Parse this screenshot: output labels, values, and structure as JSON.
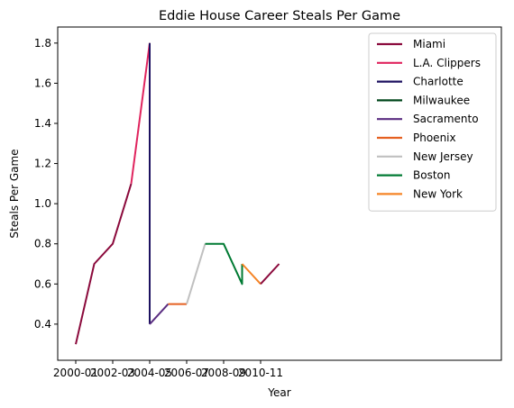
{
  "chart_data": {
    "type": "line",
    "title": "Eddie House Career Steals Per Game",
    "xlabel": "Year",
    "ylabel": "Steals Per Game",
    "x_ticks": [
      "2000-01",
      "2002-03",
      "2004-05",
      "2006-07",
      "2008-09",
      "2010-11"
    ],
    "y_ticks": [
      "0.4",
      "0.6",
      "0.8",
      "1.0",
      "1.2",
      "1.4",
      "1.6",
      "1.8"
    ],
    "ylim": [
      0.22,
      1.88
    ],
    "grid": false,
    "legend_position": "top-right",
    "series": [
      {
        "name": "Miami",
        "color": "#8b0a3c",
        "points": [
          [
            "2000-01",
            0.3
          ],
          [
            "2001-02",
            0.7
          ],
          [
            "2002-03",
            0.8
          ],
          [
            "2003-04",
            1.1
          ]
        ]
      },
      {
        "name": "L.A. Clippers",
        "color": "#e0245e",
        "points": [
          [
            "2003-04",
            1.1
          ],
          [
            "2004-05",
            1.8
          ]
        ]
      },
      {
        "name": "Charlotte",
        "color": "#1d1160",
        "points": [
          [
            "2004-05",
            1.8
          ],
          [
            "2004-05",
            0.4
          ]
        ]
      },
      {
        "name": "Milwaukee",
        "color": "#00471b",
        "points": [
          [
            "2004-05",
            0.4
          ]
        ]
      },
      {
        "name": "Sacramento",
        "color": "#5a2d81",
        "points": [
          [
            "2004-05",
            0.4
          ],
          [
            "2005-06",
            0.5
          ]
        ]
      },
      {
        "name": "Phoenix",
        "color": "#e56020",
        "points": [
          [
            "2005-06",
            0.5
          ],
          [
            "2006-07",
            0.5
          ]
        ]
      },
      {
        "name": "New Jersey",
        "color": "#c0c0c0",
        "points": [
          [
            "2006-07",
            0.5
          ],
          [
            "2007-08",
            0.8
          ]
        ]
      },
      {
        "name": "Boston",
        "color": "#007a33",
        "points": [
          [
            "2007-08",
            0.8
          ],
          [
            "2008-09",
            0.8
          ],
          [
            "2009-10",
            0.6
          ],
          [
            "2009-10",
            0.7
          ]
        ]
      },
      {
        "name": "New York",
        "color": "#f58426",
        "points": [
          [
            "2009-10",
            0.7
          ],
          [
            "2010-11",
            0.6
          ]
        ]
      },
      {
        "name": "Miami",
        "color": "#8b0a3c",
        "points": [
          [
            "2010-11",
            0.6
          ],
          [
            "2011-12",
            0.7
          ]
        ],
        "legend": false
      }
    ]
  }
}
